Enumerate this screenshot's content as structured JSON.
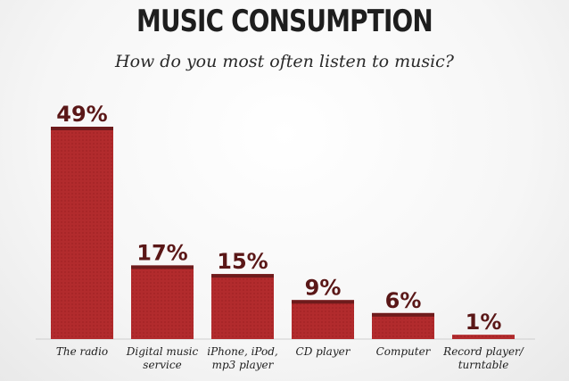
{
  "header": {
    "title": "MUSIC CONSUMPTION",
    "subtitle": "How do you most often listen to music?"
  },
  "colors": {
    "bar": "#b22b2d",
    "bar_top": "#6e1b1c",
    "value_text": "#5a1717"
  },
  "chart_data": {
    "type": "bar",
    "title": "MUSIC CONSUMPTION",
    "subtitle": "How do you most often listen to music?",
    "categories": [
      [
        "The radio"
      ],
      [
        "Digital music",
        "service"
      ],
      [
        "iPhone, iPod,",
        "mp3 player"
      ],
      [
        "CD player"
      ],
      [
        "Computer"
      ],
      [
        "Record player/",
        "turntable"
      ]
    ],
    "values": [
      49,
      17,
      15,
      9,
      6,
      1
    ],
    "value_labels": [
      "49%",
      "17%",
      "15%",
      "9%",
      "6%",
      "1%"
    ],
    "ylim": [
      0,
      49
    ],
    "grid": false
  }
}
